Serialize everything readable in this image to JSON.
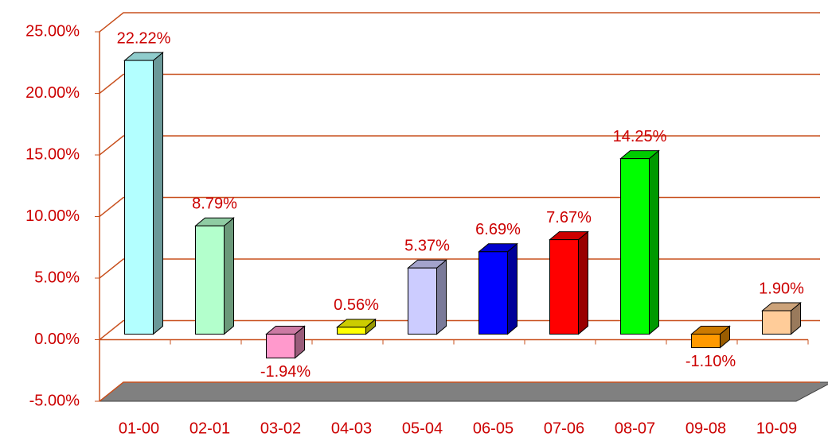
{
  "chart_data": {
    "type": "bar3d",
    "categories": [
      "01-00",
      "02-01",
      "03-02",
      "04-03",
      "05-04",
      "06-05",
      "07-06",
      "08-07",
      "09-08",
      "10-09"
    ],
    "values": [
      22.22,
      8.79,
      -1.94,
      0.56,
      5.37,
      6.69,
      7.67,
      14.25,
      -1.1,
      1.9
    ],
    "value_labels": [
      "22.22%",
      "8.79%",
      "-1.94%",
      "0.56%",
      "5.37%",
      "6.69%",
      "7.67%",
      "14.25%",
      "-1.10%",
      "1.90%"
    ],
    "colors": [
      "#b3ffff",
      "#b3ffcc",
      "#ff99cc",
      "#ffff00",
      "#ccccff",
      "#0000ff",
      "#ff0000",
      "#00ff00",
      "#ff9900",
      "#ffcc99"
    ],
    "ylim": [
      -5,
      25
    ],
    "yticks": [
      {
        "value": -5,
        "label": "-5.00%"
      },
      {
        "value": 0,
        "label": "0.00%"
      },
      {
        "value": 5,
        "label": "5.00%"
      },
      {
        "value": 10,
        "label": "10.00%"
      },
      {
        "value": 15,
        "label": "15.00%"
      },
      {
        "value": 20,
        "label": "20.00%"
      },
      {
        "value": 25,
        "label": "25.00%"
      }
    ],
    "grid": true
  }
}
